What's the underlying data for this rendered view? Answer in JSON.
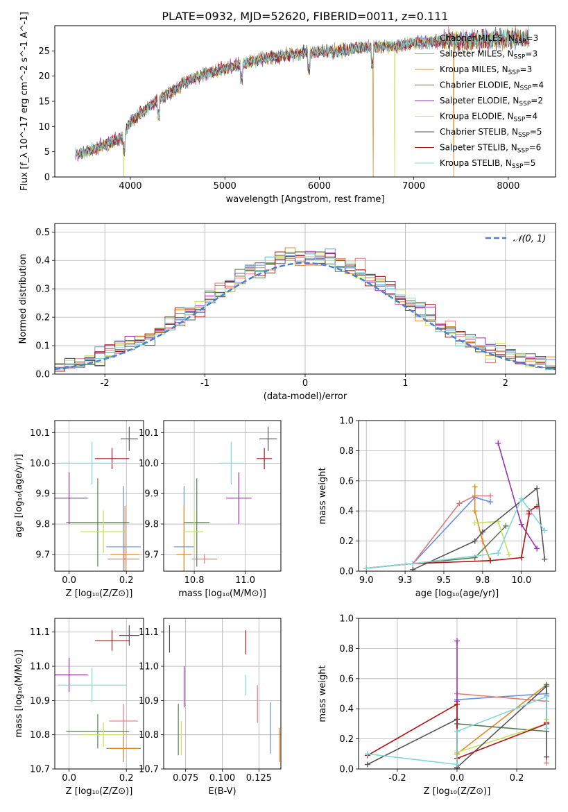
{
  "figure": {
    "title": "PLATE=0932, MJD=52620, FIBERID=0011, z=0.111"
  },
  "models": [
    {
      "name": "Chabrier MILES",
      "nssp": "3",
      "color": "#6a8fe0"
    },
    {
      "name": "Salpeter MILES",
      "nssp": "3",
      "color": "#e07a7a"
    },
    {
      "name": "Kroupa MILES",
      "nssp": "3",
      "color": "#e08a20"
    },
    {
      "name": "Chabrier ELODIE",
      "nssp": "4",
      "color": "#5a7a52"
    },
    {
      "name": "Salpeter ELODIE",
      "nssp": "2",
      "color": "#9a30b0"
    },
    {
      "name": "Kroupa ELODIE",
      "nssp": "4",
      "color": "#c8e060"
    },
    {
      "name": "Chabrier STELIB",
      "nssp": "5",
      "color": "#555555"
    },
    {
      "name": "Salpeter STELIB",
      "nssp": "6",
      "color": "#b01818"
    },
    {
      "name": "Kroupa STELIB",
      "nssp": "5",
      "color": "#80d8d8"
    }
  ],
  "chart_data": [
    {
      "id": "spectrum",
      "type": "line",
      "xlabel": "wavelength [Angstrom, rest frame]",
      "ylabel": "Flux [f_λ 10^-17 erg cm^-2 s^-1 A^-1]",
      "xlim": [
        3200,
        8500
      ],
      "ylim": [
        0,
        30
      ],
      "xticks": [
        4000,
        5000,
        6000,
        7000,
        8000
      ],
      "yticks": [
        0,
        5,
        10,
        15,
        20,
        25
      ],
      "continuum": {
        "x": [
          3450,
          3600,
          3750,
          3900,
          4000,
          4200,
          4400,
          4600,
          4800,
          5000,
          5200,
          5400,
          5600,
          5800,
          6000,
          6200,
          6400,
          6600,
          6800,
          7000,
          7200,
          7400,
          7600,
          7800,
          8000,
          8200
        ],
        "y": [
          4.5,
          5.5,
          6.5,
          7.5,
          11,
          14,
          16.5,
          19,
          20.5,
          21.5,
          22.5,
          23.5,
          24,
          24.5,
          24.8,
          25,
          25.5,
          25.8,
          26,
          26.5,
          26.8,
          27,
          27,
          27.2,
          27.5,
          27.5
        ]
      },
      "absorption_features": [
        3934,
        4300,
        5175,
        5890,
        6563
      ],
      "dropouts": [
        {
          "x": 3930,
          "model": "Kroupa ELODIE"
        },
        {
          "x": 6570,
          "model": "Kroupa MILES"
        },
        {
          "x": 6800,
          "model": "Kroupa ELODIE"
        },
        {
          "x": 7420,
          "model": "Kroupa MILES"
        }
      ],
      "legend_loc": "right"
    },
    {
      "id": "residual-histogram",
      "type": "histogram",
      "xlabel": "(data-model)/error",
      "ylabel": "Normed distribution",
      "xlim": [
        -2.5,
        2.5
      ],
      "ylim": [
        0,
        0.53
      ],
      "xticks": [
        -2,
        -1,
        0,
        1,
        2
      ],
      "yticks": [
        0,
        0.1,
        0.2,
        0.3,
        0.4,
        0.5
      ],
      "bin_width": 0.1,
      "gaussian_label": "𝒩(0, 1)",
      "gaussian_color": "#4a80d0",
      "legend_loc": "upper right",
      "grid": true
    },
    {
      "id": "age-vs-Z",
      "type": "errorbar",
      "xlabel": "Z [log₁₀(Z/Z⊙)]",
      "ylabel": "age  [log₁₀(age/yr)]",
      "xlim": [
        -0.05,
        0.26
      ],
      "ylim": [
        9.645,
        10.14
      ],
      "xticks": [
        0,
        0.2
      ],
      "yticks": [
        9.7,
        9.8,
        9.9,
        10.0,
        10.1
      ],
      "points": [
        {
          "model": "Chabrier MILES",
          "x": 0.19,
          "xerr": 0.06,
          "y": 9.725,
          "yerr": 0.2
        },
        {
          "model": "Salpeter MILES",
          "x": 0.19,
          "xerr": 0.055,
          "y": 9.685,
          "yerr": 0.015
        },
        {
          "model": "Kroupa MILES",
          "x": 0.195,
          "xerr": 0.05,
          "y": 9.7,
          "yerr": 0.16
        },
        {
          "model": "Chabrier ELODIE",
          "x": 0.1,
          "xerr": 0.11,
          "y": 9.805,
          "yerr": 0.145
        },
        {
          "model": "Salpeter ELODIE",
          "x": 0.0,
          "xerr": 0.065,
          "y": 9.885,
          "yerr": 0.085
        },
        {
          "model": "Kroupa ELODIE",
          "x": 0.12,
          "xerr": 0.08,
          "y": 9.775,
          "yerr": 0.07
        },
        {
          "model": "Chabrier STELIB",
          "x": 0.21,
          "xerr": 0.03,
          "y": 10.08,
          "yerr": 0.04
        },
        {
          "model": "Salpeter STELIB",
          "x": 0.15,
          "xerr": 0.06,
          "y": 10.015,
          "yerr": 0.035
        },
        {
          "model": "Kroupa STELIB",
          "x": 0.08,
          "xerr": 0.12,
          "y": 10.0,
          "yerr": 0.07
        }
      ],
      "grid": true
    },
    {
      "id": "age-vs-mass",
      "type": "errorbar",
      "xlabel": "mass [log₁₀(M/M⊙)]",
      "ylabel": "",
      "xlim": [
        10.68,
        11.14
      ],
      "ylim": [
        9.645,
        10.14
      ],
      "xticks": [
        10.8,
        11.0
      ],
      "yticks": [
        9.7,
        9.8,
        9.9,
        10.0,
        10.1
      ],
      "points": [
        {
          "model": "Chabrier MILES",
          "x": 10.76,
          "xerr": 0.04,
          "y": 9.725,
          "yerr": 0.2
        },
        {
          "model": "Salpeter MILES",
          "x": 10.84,
          "xerr": 0.05,
          "y": 9.685,
          "yerr": 0.015
        },
        {
          "model": "Kroupa MILES",
          "x": 10.76,
          "xerr": 0.03,
          "y": 9.7,
          "yerr": 0.16
        },
        {
          "model": "Chabrier ELODIE",
          "x": 10.81,
          "xerr": 0.05,
          "y": 9.805,
          "yerr": 0.145
        },
        {
          "model": "Salpeter ELODIE",
          "x": 10.975,
          "xerr": 0.05,
          "y": 9.885,
          "yerr": 0.085
        },
        {
          "model": "Kroupa ELODIE",
          "x": 10.8,
          "xerr": 0.035,
          "y": 9.775,
          "yerr": 0.07
        },
        {
          "model": "Chabrier STELIB",
          "x": 11.09,
          "xerr": 0.035,
          "y": 10.08,
          "yerr": 0.04
        },
        {
          "model": "Salpeter STELIB",
          "x": 11.075,
          "xerr": 0.03,
          "y": 10.015,
          "yerr": 0.035
        },
        {
          "model": "Kroupa STELIB",
          "x": 10.945,
          "xerr": 0.05,
          "y": 10.0,
          "yerr": 0.07
        }
      ],
      "grid": true
    },
    {
      "id": "mass-weight-vs-age",
      "type": "line",
      "xlabel": "age  [log₁₀(age/yr)]",
      "ylabel": "mass weight",
      "xlim": [
        8.95,
        10.22
      ],
      "ylim": [
        0,
        1
      ],
      "xticks": [
        9.0,
        9.25,
        9.5,
        9.75,
        10.0
      ],
      "yticks": [
        0,
        0.2,
        0.4,
        0.6,
        0.8,
        1.0
      ],
      "series": [
        {
          "model": "Chabrier MILES",
          "x": [
            9.3,
            9.7,
            9.8
          ],
          "y": [
            0.05,
            0.49,
            0.46
          ]
        },
        {
          "model": "Salpeter MILES",
          "x": [
            9.3,
            9.6,
            9.7,
            9.8
          ],
          "y": [
            0.05,
            0.45,
            0.5,
            0.5
          ]
        },
        {
          "model": "Kroupa MILES",
          "x": [
            9.7,
            9.7,
            9.75,
            9.8
          ],
          "y": [
            0.56,
            0.4,
            0.2,
            0.07
          ]
        },
        {
          "model": "Chabrier ELODIE",
          "x": [
            9.0,
            9.3,
            9.7,
            9.9
          ],
          "y": [
            0.02,
            0.05,
            0.09,
            0.3
          ]
        },
        {
          "model": "Salpeter ELODIE",
          "x": [
            9.85,
            10.0,
            10.1
          ],
          "y": [
            0.85,
            0.31,
            0.15
          ]
        },
        {
          "model": "Kroupa ELODIE",
          "x": [
            9.7,
            9.85,
            9.92
          ],
          "y": [
            0.32,
            0.33,
            0.11
          ]
        },
        {
          "model": "Chabrier STELIB",
          "x": [
            9.3,
            9.7,
            9.75,
            10.1,
            10.15
          ],
          "y": [
            0.01,
            0.2,
            0.26,
            0.55,
            0.08
          ]
        },
        {
          "model": "Salpeter STELIB",
          "x": [
            9.0,
            9.3,
            9.8,
            10.0,
            10.05,
            10.05,
            10.1
          ],
          "y": [
            0.02,
            0.05,
            0.07,
            0.09,
            0.38,
            0.4,
            0.43
          ]
        },
        {
          "model": "Kroupa STELIB",
          "x": [
            9.0,
            9.3,
            9.85,
            10.0,
            10.15
          ],
          "y": [
            0.02,
            0.05,
            0.12,
            0.48,
            0.27
          ]
        }
      ],
      "grid": true
    },
    {
      "id": "mass-vs-Z",
      "type": "errorbar",
      "xlabel": "Z [log₁₀(Z/Z⊙)]",
      "ylabel": "mass [log₁₀(M/M⊙)]",
      "xlim": [
        -0.05,
        0.26
      ],
      "ylim": [
        10.7,
        11.14
      ],
      "xticks": [
        0,
        0.2
      ],
      "yticks": [
        10.7,
        10.8,
        10.9,
        11.0,
        11.1
      ],
      "points": [
        {
          "model": "Chabrier MILES",
          "x": 0.19,
          "xerr": 0.06,
          "y": 10.76,
          "yerr": 0.04
        },
        {
          "model": "Salpeter MILES",
          "x": 0.19,
          "xerr": 0.05,
          "y": 10.84,
          "yerr": 0.05
        },
        {
          "model": "Kroupa MILES",
          "x": 0.19,
          "xerr": 0.055,
          "y": 10.76,
          "yerr": 0.03
        },
        {
          "model": "Chabrier ELODIE",
          "x": 0.1,
          "xerr": 0.11,
          "y": 10.81,
          "yerr": 0.05
        },
        {
          "model": "Salpeter ELODIE",
          "x": 0.0,
          "xerr": 0.065,
          "y": 10.975,
          "yerr": 0.05
        },
        {
          "model": "Kroupa ELODIE",
          "x": 0.12,
          "xerr": 0.08,
          "y": 10.8,
          "yerr": 0.035
        },
        {
          "model": "Chabrier STELIB",
          "x": 0.21,
          "xerr": 0.035,
          "y": 11.09,
          "yerr": 0.03
        },
        {
          "model": "Salpeter STELIB",
          "x": 0.15,
          "xerr": 0.06,
          "y": 11.075,
          "yerr": 0.03
        },
        {
          "model": "Kroupa STELIB",
          "x": 0.08,
          "xerr": 0.12,
          "y": 10.945,
          "yerr": 0.05
        }
      ],
      "grid": true
    },
    {
      "id": "mass-vs-ebv",
      "type": "errorbar",
      "xlabel": "E(B-V)",
      "ylabel": "",
      "xlim": [
        0.06,
        0.14
      ],
      "ylim": [
        10.7,
        11.14
      ],
      "xticks": [
        0.075,
        0.1,
        0.125
      ],
      "xticklabels": [
        "0.075",
        "0.100",
        "0.125"
      ],
      "yticks": [
        10.7,
        10.8,
        10.9,
        11.0,
        11.1
      ],
      "points": [
        {
          "model": "Chabrier MILES",
          "x": 0.133,
          "y": 10.82,
          "yerr": 0.075
        },
        {
          "model": "Salpeter MILES",
          "x": 0.124,
          "y": 10.89,
          "yerr": 0.055
        },
        {
          "model": "Kroupa MILES",
          "x": 0.139,
          "y": 10.77,
          "yerr": 0.05
        },
        {
          "model": "Chabrier ELODIE",
          "x": 0.07,
          "y": 10.815,
          "yerr": 0.075
        },
        {
          "model": "Salpeter ELODIE",
          "x": 0.074,
          "y": 10.94,
          "yerr": 0.06
        },
        {
          "model": "Kroupa ELODIE",
          "x": 0.072,
          "y": 10.79,
          "yerr": 0.05
        },
        {
          "model": "Chabrier STELIB",
          "x": 0.064,
          "y": 11.08,
          "yerr": 0.04
        },
        {
          "model": "Salpeter STELIB",
          "x": 0.116,
          "y": 11.07,
          "yerr": 0.035
        },
        {
          "model": "Kroupa STELIB",
          "x": 0.116,
          "y": 10.945,
          "yerr": 0.03
        }
      ],
      "grid": true
    },
    {
      "id": "mass-weight-vs-Z",
      "type": "line",
      "xlabel": "Z [log₁₀(Z/Z⊙)]",
      "ylabel": "mass weight",
      "xlim": [
        -0.33,
        0.33
      ],
      "ylim": [
        0,
        1
      ],
      "xticks": [
        -0.2,
        0.0,
        0.2
      ],
      "yticks": [
        0,
        0.2,
        0.4,
        0.6,
        0.8,
        1.0
      ],
      "series": [
        {
          "model": "Chabrier MILES",
          "x": [
            0.0,
            0.3,
            0.3
          ],
          "y": [
            0.46,
            0.5,
            0.49
          ]
        },
        {
          "model": "Salpeter MILES",
          "x": [
            0.0,
            0.3,
            0.3
          ],
          "y": [
            0.5,
            0.45,
            0.04
          ]
        },
        {
          "model": "Kroupa MILES",
          "x": [
            0.0,
            0.3,
            0.3
          ],
          "y": [
            0.1,
            0.56,
            0.31
          ]
        },
        {
          "model": "Chabrier ELODIE",
          "x": [
            0.0,
            0.3,
            0.3
          ],
          "y": [
            0.3,
            0.25,
            0.56
          ]
        },
        {
          "model": "Salpeter ELODIE",
          "x": [
            0.0,
            0.0,
            0.0
          ],
          "y": [
            0.85,
            0.0,
            0.45
          ]
        },
        {
          "model": "Kroupa ELODIE",
          "x": [
            0.0,
            0.3,
            0.3
          ],
          "y": [
            0.11,
            0.3,
            0.33
          ]
        },
        {
          "model": "Chabrier STELIB",
          "x": [
            -0.3,
            0.0,
            0.0,
            0.3,
            0.3
          ],
          "y": [
            0.03,
            0.33,
            0.01,
            0.55,
            0.08
          ]
        },
        {
          "model": "Salpeter STELIB",
          "x": [
            -0.3,
            0.0,
            0.0,
            0.3,
            0.3
          ],
          "y": [
            0.09,
            0.43,
            0.07,
            0.3,
            0.31
          ]
        },
        {
          "model": "Kroupa STELIB",
          "x": [
            -0.3,
            0.0,
            0.0,
            0.3,
            0.3
          ],
          "y": [
            0.1,
            0.03,
            0.25,
            0.48,
            0.27
          ]
        }
      ],
      "grid": true
    }
  ]
}
